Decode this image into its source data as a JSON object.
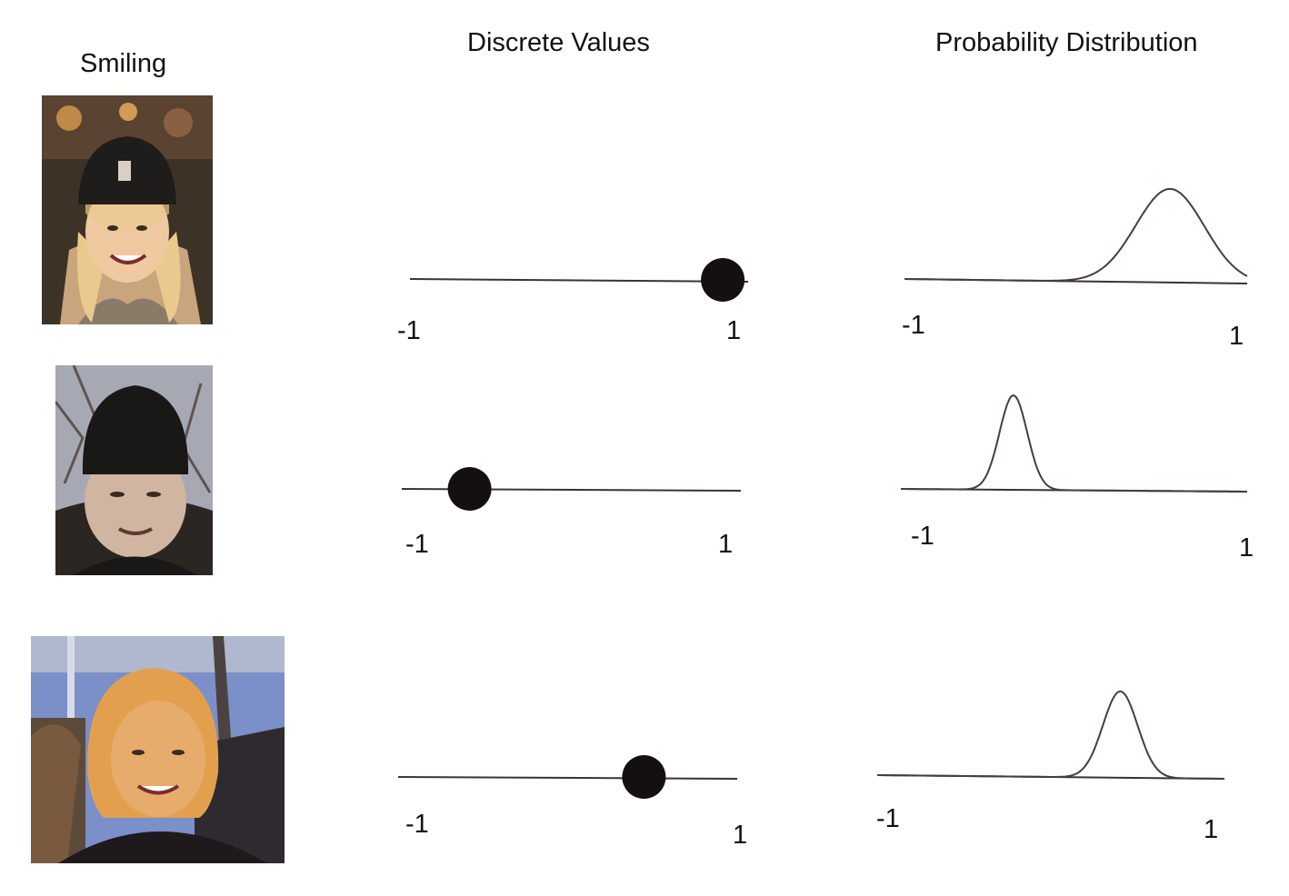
{
  "headings": {
    "smiling": "Smiling",
    "discrete": "Discrete Values",
    "probability": "Probability Distribution"
  },
  "photos": [
    {
      "name": "photo-smiling-young-woman-beanie",
      "palette": [
        "#3d3226",
        "#e9c98e",
        "#1f1c1c",
        "#c9a57d"
      ]
    },
    {
      "name": "photo-man-black-beanie",
      "palette": [
        "#a6a9b4",
        "#1a1717",
        "#d0b5a0",
        "#2b2622"
      ]
    },
    {
      "name": "photo-blond-woman-blue-sky",
      "palette": [
        "#7b8fc8",
        "#e2a04e",
        "#1e1a1c",
        "#b0b8cf"
      ]
    }
  ],
  "chart_data": [
    {
      "type": "scatter",
      "title": "Discrete Values",
      "rows": [
        {
          "x": 0.85,
          "xmin_label": "-1",
          "xmax_label": "1"
        },
        {
          "x": -0.6,
          "xmin_label": "-1",
          "xmax_label": "1"
        },
        {
          "x": 0.45,
          "xmin_label": "-1",
          "xmax_label": "1"
        }
      ],
      "xlim": [
        -1,
        1
      ],
      "grid": false
    },
    {
      "type": "line",
      "title": "Probability Distribution",
      "rows": [
        {
          "mean": 0.55,
          "spread": 0.2,
          "xmin_label": "-1",
          "xmax_label": "1"
        },
        {
          "mean": -0.35,
          "spread": 0.08,
          "xmin_label": "-1",
          "xmax_label": "1"
        },
        {
          "mean": 0.4,
          "spread": 0.1,
          "xmin_label": "-1",
          "xmax_label": "1"
        }
      ],
      "xlim": [
        -1,
        1
      ],
      "grid": false
    }
  ],
  "colors": {
    "line": "#3a3333",
    "dot": "#141012",
    "curve": "#4a3c3c"
  }
}
